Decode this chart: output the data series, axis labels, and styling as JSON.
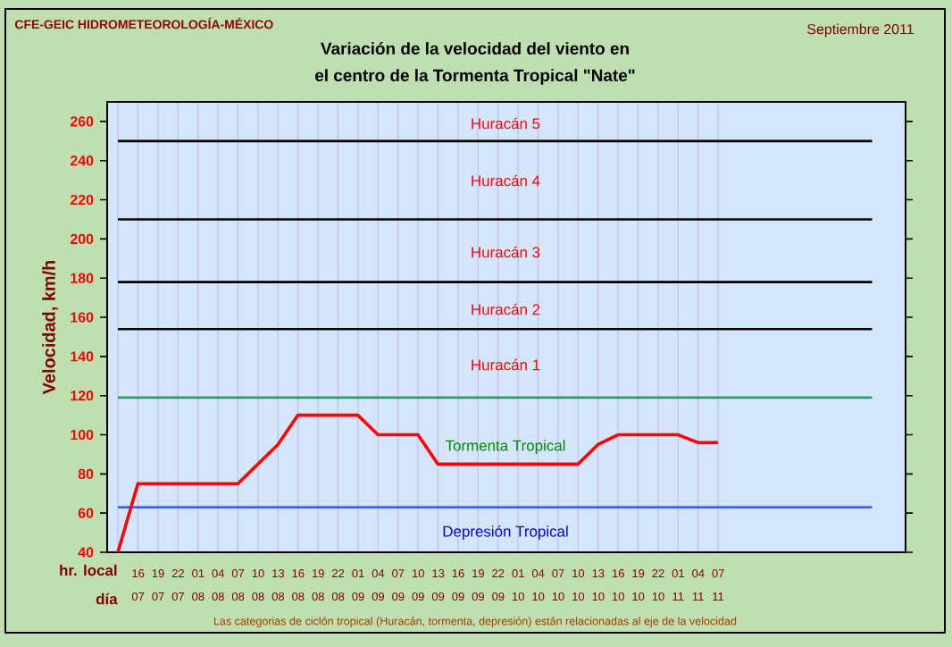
{
  "chart_data": {
    "type": "line",
    "title": "Variación de la velocidad del viento en",
    "subtitle": "el centro de la Tormenta Tropical \"Nate\"",
    "ylabel": "Velocidad, km/h",
    "categories": [
      null,
      "16 07",
      "19 07",
      "22 07",
      "01 08",
      "04 08",
      "07 08",
      "10 08",
      "13 08",
      "16 08",
      "19 08",
      "22 08",
      "01 09",
      "04 09",
      "07 09",
      "10 09",
      "13 09",
      "16 09",
      "19 09",
      "22 09",
      "01 10",
      "04 10",
      "07 10",
      "10 10",
      "13 10",
      "16 10",
      "19 10",
      "22 10",
      "01 11",
      "04 11",
      "07 11"
    ],
    "series": [
      {
        "color": "#ff0000",
        "values": [
          40,
          75,
          75,
          75,
          75,
          75,
          75,
          85,
          95,
          110,
          110,
          110,
          110,
          100,
          100,
          100,
          85,
          85,
          85,
          85,
          85,
          85,
          85,
          85,
          95,
          100,
          100,
          100,
          100,
          96,
          96
        ]
      }
    ],
    "ylim": [
      40,
      270
    ],
    "yticks": [
      40,
      60,
      80,
      100,
      120,
      140,
      160,
      180,
      200,
      220,
      240,
      260
    ],
    "grid": "x",
    "marker": "none",
    "line_style": "solid",
    "ref_lines": [
      {
        "axis": "y",
        "value": 63,
        "color": "#3366ff"
      },
      {
        "axis": "y",
        "value": 119,
        "color": "#339966"
      },
      {
        "axis": "y",
        "value": 154,
        "color": "#000000"
      },
      {
        "axis": "y",
        "value": 178,
        "color": "#000000"
      },
      {
        "axis": "y",
        "value": 210,
        "color": "#000000"
      },
      {
        "axis": "y",
        "value": 250,
        "color": "#000000"
      }
    ],
    "annotations": [
      "CFE-GEIC  HIDROMETEOROLOGÍA-MÉXICO",
      "Septiembre 2011",
      "hr. local",
      "día",
      "Las categorias de ciclón tropical (Huracán, tormenta, depresión) están relacionadas al eje de la velocidad",
      "Depresión Tropical",
      "Tormenta Tropical",
      "Huracán 1",
      "Huracán 2",
      "Huracán 3",
      "Huracán 4",
      "Huracán 5"
    ]
  }
}
